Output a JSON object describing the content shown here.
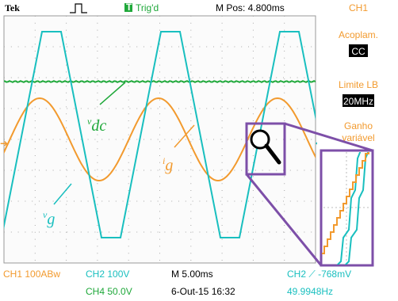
{
  "top_bar": {
    "brand": "Tek",
    "trigger": "Trig'd",
    "position": "M Pos: 4.800ms",
    "channel": "CH1"
  },
  "menu": [
    {
      "label": "Acoplam.",
      "value": "CC"
    },
    {
      "label": "Limite LB",
      "value": "20MHz"
    },
    {
      "label": "Ganho variável"
    }
  ],
  "annotations": {
    "vdc": {
      "main": "v",
      "sub": "dc"
    },
    "ig": {
      "main": "i",
      "sub": "g"
    },
    "vg": {
      "main": "v",
      "sub": "g"
    }
  },
  "bottom_bar": {
    "ch1": "CH1  100ABw",
    "ch2": "CH2  100V",
    "timebase": "M 5.00ms",
    "trigger_level": "CH2 ⟋ -768mV",
    "ch4": "CH4  50.0V",
    "date": "6-Out-15 16:32",
    "frequency": "49.9948Hz"
  }
}
